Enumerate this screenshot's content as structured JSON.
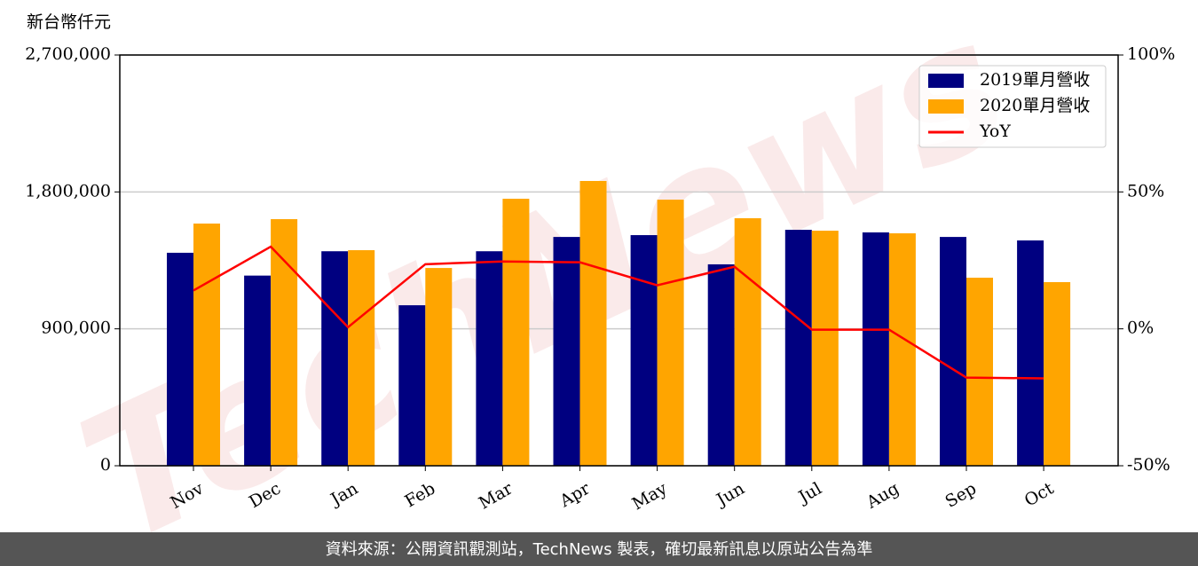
{
  "chart_data": {
    "type": "bar_line",
    "y_label": "新台幣仟元",
    "watermark": "TechNews",
    "footer": "資料來源：公開資訊觀測站，TechNews 製表，確切最新訊息以原站公告為準",
    "categories": [
      "Nov",
      "Dec",
      "Jan",
      "Feb",
      "Mar",
      "Apr",
      "May",
      "Jun",
      "Jul",
      "Aug",
      "Sep",
      "Oct"
    ],
    "series": [
      {
        "name": "2019單月營收",
        "color": "#000080",
        "type": "bar",
        "values": [
          1400000,
          1250000,
          1410000,
          1055000,
          1410000,
          1504000,
          1516000,
          1324000,
          1551000,
          1534000,
          1504000,
          1481000
        ]
      },
      {
        "name": "2020單月營收",
        "color": "#ffa500",
        "type": "bar",
        "values": [
          1592000,
          1621000,
          1417000,
          1300000,
          1755000,
          1872000,
          1749000,
          1627000,
          1545000,
          1528000,
          1236000,
          1207000
        ]
      },
      {
        "name": "YoY",
        "color": "#ff0000",
        "type": "line",
        "axis": "y2",
        "values": [
          14,
          30,
          0.6,
          23.6,
          24.6,
          24.3,
          15.9,
          22.7,
          -0.3,
          -0.3,
          -17.8,
          -18.1
        ]
      }
    ],
    "ylim": [
      0,
      2700000
    ],
    "yticks": [
      0,
      {
        "value": 900000,
        "label": "900,000"
      },
      {
        "value": 1800000,
        "label": "1,800,000"
      },
      {
        "value": 2700000,
        "label": "2,700,000"
      }
    ],
    "y2lim": [
      -50,
      100
    ],
    "y2ticks": [
      {
        "value": -50,
        "label": "-50%"
      },
      {
        "value": 0,
        "label": "0%"
      },
      {
        "value": 50,
        "label": "50%"
      },
      {
        "value": 100,
        "label": "100%"
      }
    ],
    "grid": true,
    "legend": "upper right"
  }
}
